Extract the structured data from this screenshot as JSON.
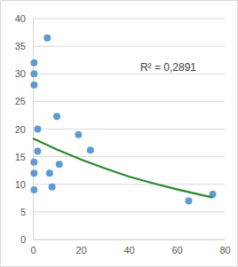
{
  "chart_data": {
    "type": "scatter",
    "annotation": "R² = 0,2891",
    "xlim": [
      0,
      80
    ],
    "xticks": [
      0,
      20,
      40,
      60,
      80
    ],
    "ylim": [
      0,
      40
    ],
    "yticks": [
      0,
      5,
      10,
      15,
      20,
      25,
      30,
      35,
      40
    ],
    "grid": true,
    "series": [
      {
        "type": "scatter",
        "marker": "circle",
        "color": "#5b9bd5",
        "x": [
          0.5,
          0.5,
          0.5,
          0.5,
          0.5,
          0.5,
          2,
          2,
          6,
          7,
          8,
          10,
          11,
          19,
          24,
          65,
          75
        ],
        "values": [
          32,
          30,
          28,
          14,
          12,
          9,
          20,
          16,
          36.5,
          12,
          9.5,
          22.3,
          13.6,
          19,
          16.2,
          7,
          8.2
        ]
      },
      {
        "type": "line",
        "line_style": "solid",
        "color": "#1f8f2a",
        "x": [
          0,
          10,
          20,
          30,
          40,
          50,
          60,
          70,
          75
        ],
        "values": [
          18.3,
          16.3,
          14.5,
          12.9,
          11.4,
          10.2,
          9.1,
          8.1,
          7.6
        ]
      }
    ]
  }
}
